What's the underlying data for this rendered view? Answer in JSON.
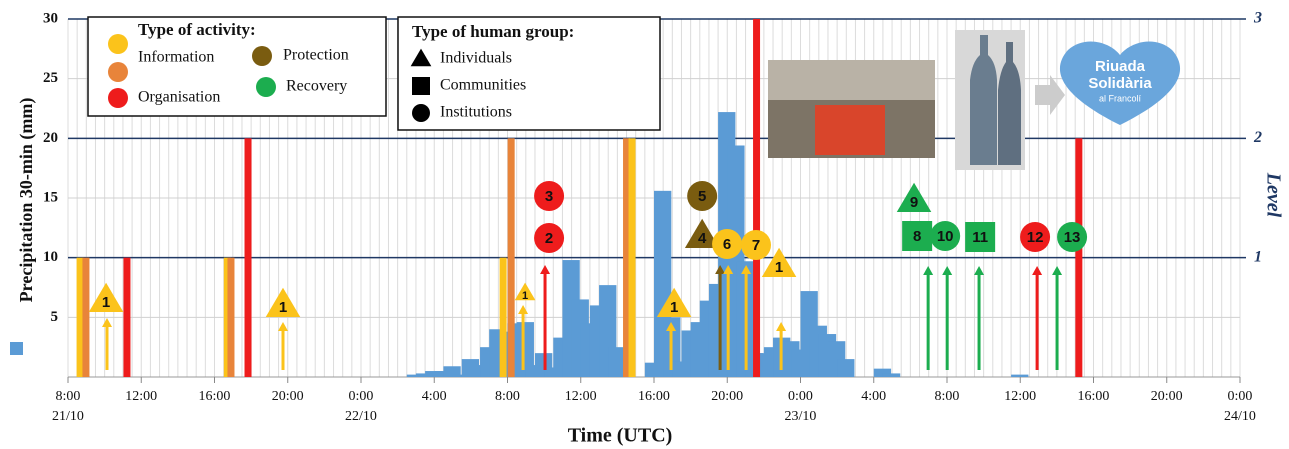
{
  "chart_data": {
    "type": "bar",
    "y_label": "Precipitation 30-min (mm)",
    "x_label": "Time (UTC)",
    "y2_label": "Level",
    "xlim": [
      8,
      72
    ],
    "xticks": [
      {
        "value": 8,
        "label": "8:00"
      },
      {
        "value": 12,
        "label": "12:00"
      },
      {
        "value": 16,
        "label": "16:00"
      },
      {
        "value": 20,
        "label": "20:00"
      },
      {
        "value": 24,
        "label": "0:00"
      },
      {
        "value": 28,
        "label": "4:00"
      },
      {
        "value": 32,
        "label": "8:00"
      },
      {
        "value": 36,
        "label": "12:00"
      },
      {
        "value": 40,
        "label": "16:00"
      },
      {
        "value": 44,
        "label": "20:00"
      },
      {
        "value": 48,
        "label": "0:00"
      },
      {
        "value": 52,
        "label": "4:00"
      },
      {
        "value": 56,
        "label": "8:00"
      },
      {
        "value": 60,
        "label": "12:00"
      },
      {
        "value": 64,
        "label": "16:00"
      },
      {
        "value": 68,
        "label": "20:00"
      },
      {
        "value": 72,
        "label": "0:00"
      }
    ],
    "x_dates": [
      {
        "value": 8,
        "label": "21/10"
      },
      {
        "value": 24,
        "label": "22/10"
      },
      {
        "value": 48,
        "label": "23/10"
      },
      {
        "value": 72,
        "label": "24/10"
      }
    ],
    "ylim": [
      0,
      30
    ],
    "yticks": [
      5,
      10,
      15,
      20,
      25,
      30
    ],
    "y2lim": [
      0,
      3
    ],
    "y2ticks": [
      1,
      2,
      3
    ],
    "grid": true,
    "color": "#5b9bd5",
    "x": [
      26.5,
      27,
      27.5,
      28,
      28.5,
      29,
      29.5,
      30,
      30.5,
      31,
      31.5,
      32,
      32.5,
      33,
      33.5,
      34,
      34.5,
      35,
      35.5,
      36,
      36.5,
      37,
      37.5,
      38,
      39.5,
      40,
      40.5,
      41,
      41.5,
      42,
      42.5,
      43,
      43.5,
      44,
      44.5,
      45,
      45.5,
      46,
      46.5,
      47,
      47.5,
      48,
      48.5,
      49,
      49.5,
      50,
      52,
      52.5,
      59.5
    ],
    "values": [
      0.2,
      0.3,
      0.5,
      0.5,
      0.9,
      0.2,
      1.5,
      1.0,
      2.5,
      4.0,
      3.8,
      4.5,
      4.6,
      1.0,
      2.0,
      0.8,
      3.3,
      9.8,
      6.5,
      4.5,
      6.0,
      7.7,
      2.5,
      2.0,
      1.2,
      15.6,
      5.0,
      1.3,
      3.9,
      4.6,
      6.4,
      7.8,
      22.2,
      19.4,
      9.7,
      2.0,
      2.0,
      2.5,
      3.3,
      3.0,
      2.3,
      7.2,
      4.3,
      3.6,
      3.0,
      1.5,
      0.7,
      0.3,
      0.2
    ],
    "level_bars": {
      "x": [
        8.66,
        8.98,
        11.22,
        16.7,
        16.9,
        17.83,
        31.76,
        32.2,
        38.5,
        38.8,
        45.6,
        63.2
      ],
      "levels": [
        1,
        1,
        1,
        1,
        1,
        2,
        1,
        2,
        2,
        2,
        3,
        2
      ],
      "colors": [
        "#fbc31b",
        "#e8843a",
        "#ee1c1c",
        "#fbc31b",
        "#e8843a",
        "#ee1c1c",
        "#fbc31b",
        "#e8843a",
        "#e8843a",
        "#fbc31b",
        "#ee1c1c",
        "#ee1c1c"
      ]
    },
    "markers": [
      {
        "label": "1",
        "shape": "triangle",
        "color": "#fbc31b",
        "x": 10.08
      },
      {
        "label": "1",
        "shape": "triangle",
        "color": "#fbc31b",
        "x": 19.74
      },
      {
        "label": "1",
        "shape": "triangle",
        "color": "#fbc31b",
        "x": 32.96
      },
      {
        "label": "3",
        "shape": "circle",
        "color": "#ee1c1c",
        "x": 34.27
      },
      {
        "label": "2",
        "shape": "circle",
        "color": "#ee1c1c",
        "x": 34.27
      },
      {
        "label": "5",
        "shape": "circle",
        "color": "#7a5c10",
        "x": 42.63
      },
      {
        "label": "4",
        "shape": "triangle",
        "color": "#7a5c10",
        "x": 42.63
      },
      {
        "label": "6",
        "shape": "circle",
        "color": "#fbc31b",
        "x": 43.99
      },
      {
        "label": "1",
        "shape": "triangle",
        "color": "#fbc31b",
        "x": 41.1
      },
      {
        "label": "7",
        "shape": "circle",
        "color": "#fbc31b",
        "x": 45.57
      },
      {
        "label": "1",
        "shape": "triangle",
        "color": "#fbc31b",
        "x": 46.83
      },
      {
        "label": "9",
        "shape": "triangle",
        "color": "#1cad4f",
        "x": 54.2
      },
      {
        "label": "8",
        "shape": "square",
        "color": "#1cad4f",
        "x": 54.37
      },
      {
        "label": "10",
        "shape": "circle",
        "color": "#1cad4f",
        "x": 55.9
      },
      {
        "label": "11",
        "shape": "square",
        "color": "#1cad4f",
        "x": 57.81
      },
      {
        "label": "12",
        "shape": "circle",
        "color": "#ee1c1c",
        "x": 60.81
      },
      {
        "label": "13",
        "shape": "circle",
        "color": "#1cad4f",
        "x": 62.83
      }
    ],
    "arrows": {
      "x": [
        10.13,
        19.74,
        32.85,
        34.05,
        40.93,
        43.61,
        44.05,
        45.03,
        46.94,
        54.97,
        56.01,
        57.75,
        60.92,
        62.01
      ],
      "colors": [
        "#fbc31b",
        "#fbc31b",
        "#fbc31b",
        "#ee1c1c",
        "#fbc31b",
        "#7a5c10",
        "#fbc31b",
        "#fbc31b",
        "#fbc31b",
        "#1cad4f",
        "#1cad4f",
        "#1cad4f",
        "#ee1c1c",
        "#1cad4f"
      ]
    },
    "activity_legend": {
      "title": "Type of activity:",
      "items": [
        {
          "name": "Information",
          "colors": [
            "#fbc31b",
            "#e8843a"
          ]
        },
        {
          "name": "Organisation",
          "colors": [
            "#ee1c1c"
          ]
        },
        {
          "name": "Protection",
          "colors": [
            "#7a5c10"
          ]
        },
        {
          "name": "Recovery",
          "colors": [
            "#1cad4f"
          ]
        }
      ]
    },
    "group_legend": {
      "title": "Type of human group:",
      "items": [
        {
          "name": "Individuals",
          "shape": "triangle"
        },
        {
          "name": "Communities",
          "shape": "square"
        },
        {
          "name": "Institutions",
          "shape": "circle"
        }
      ]
    }
  },
  "logo": {
    "lines": [
      "Riuada",
      "Solidària",
      "al Francolí"
    ]
  }
}
